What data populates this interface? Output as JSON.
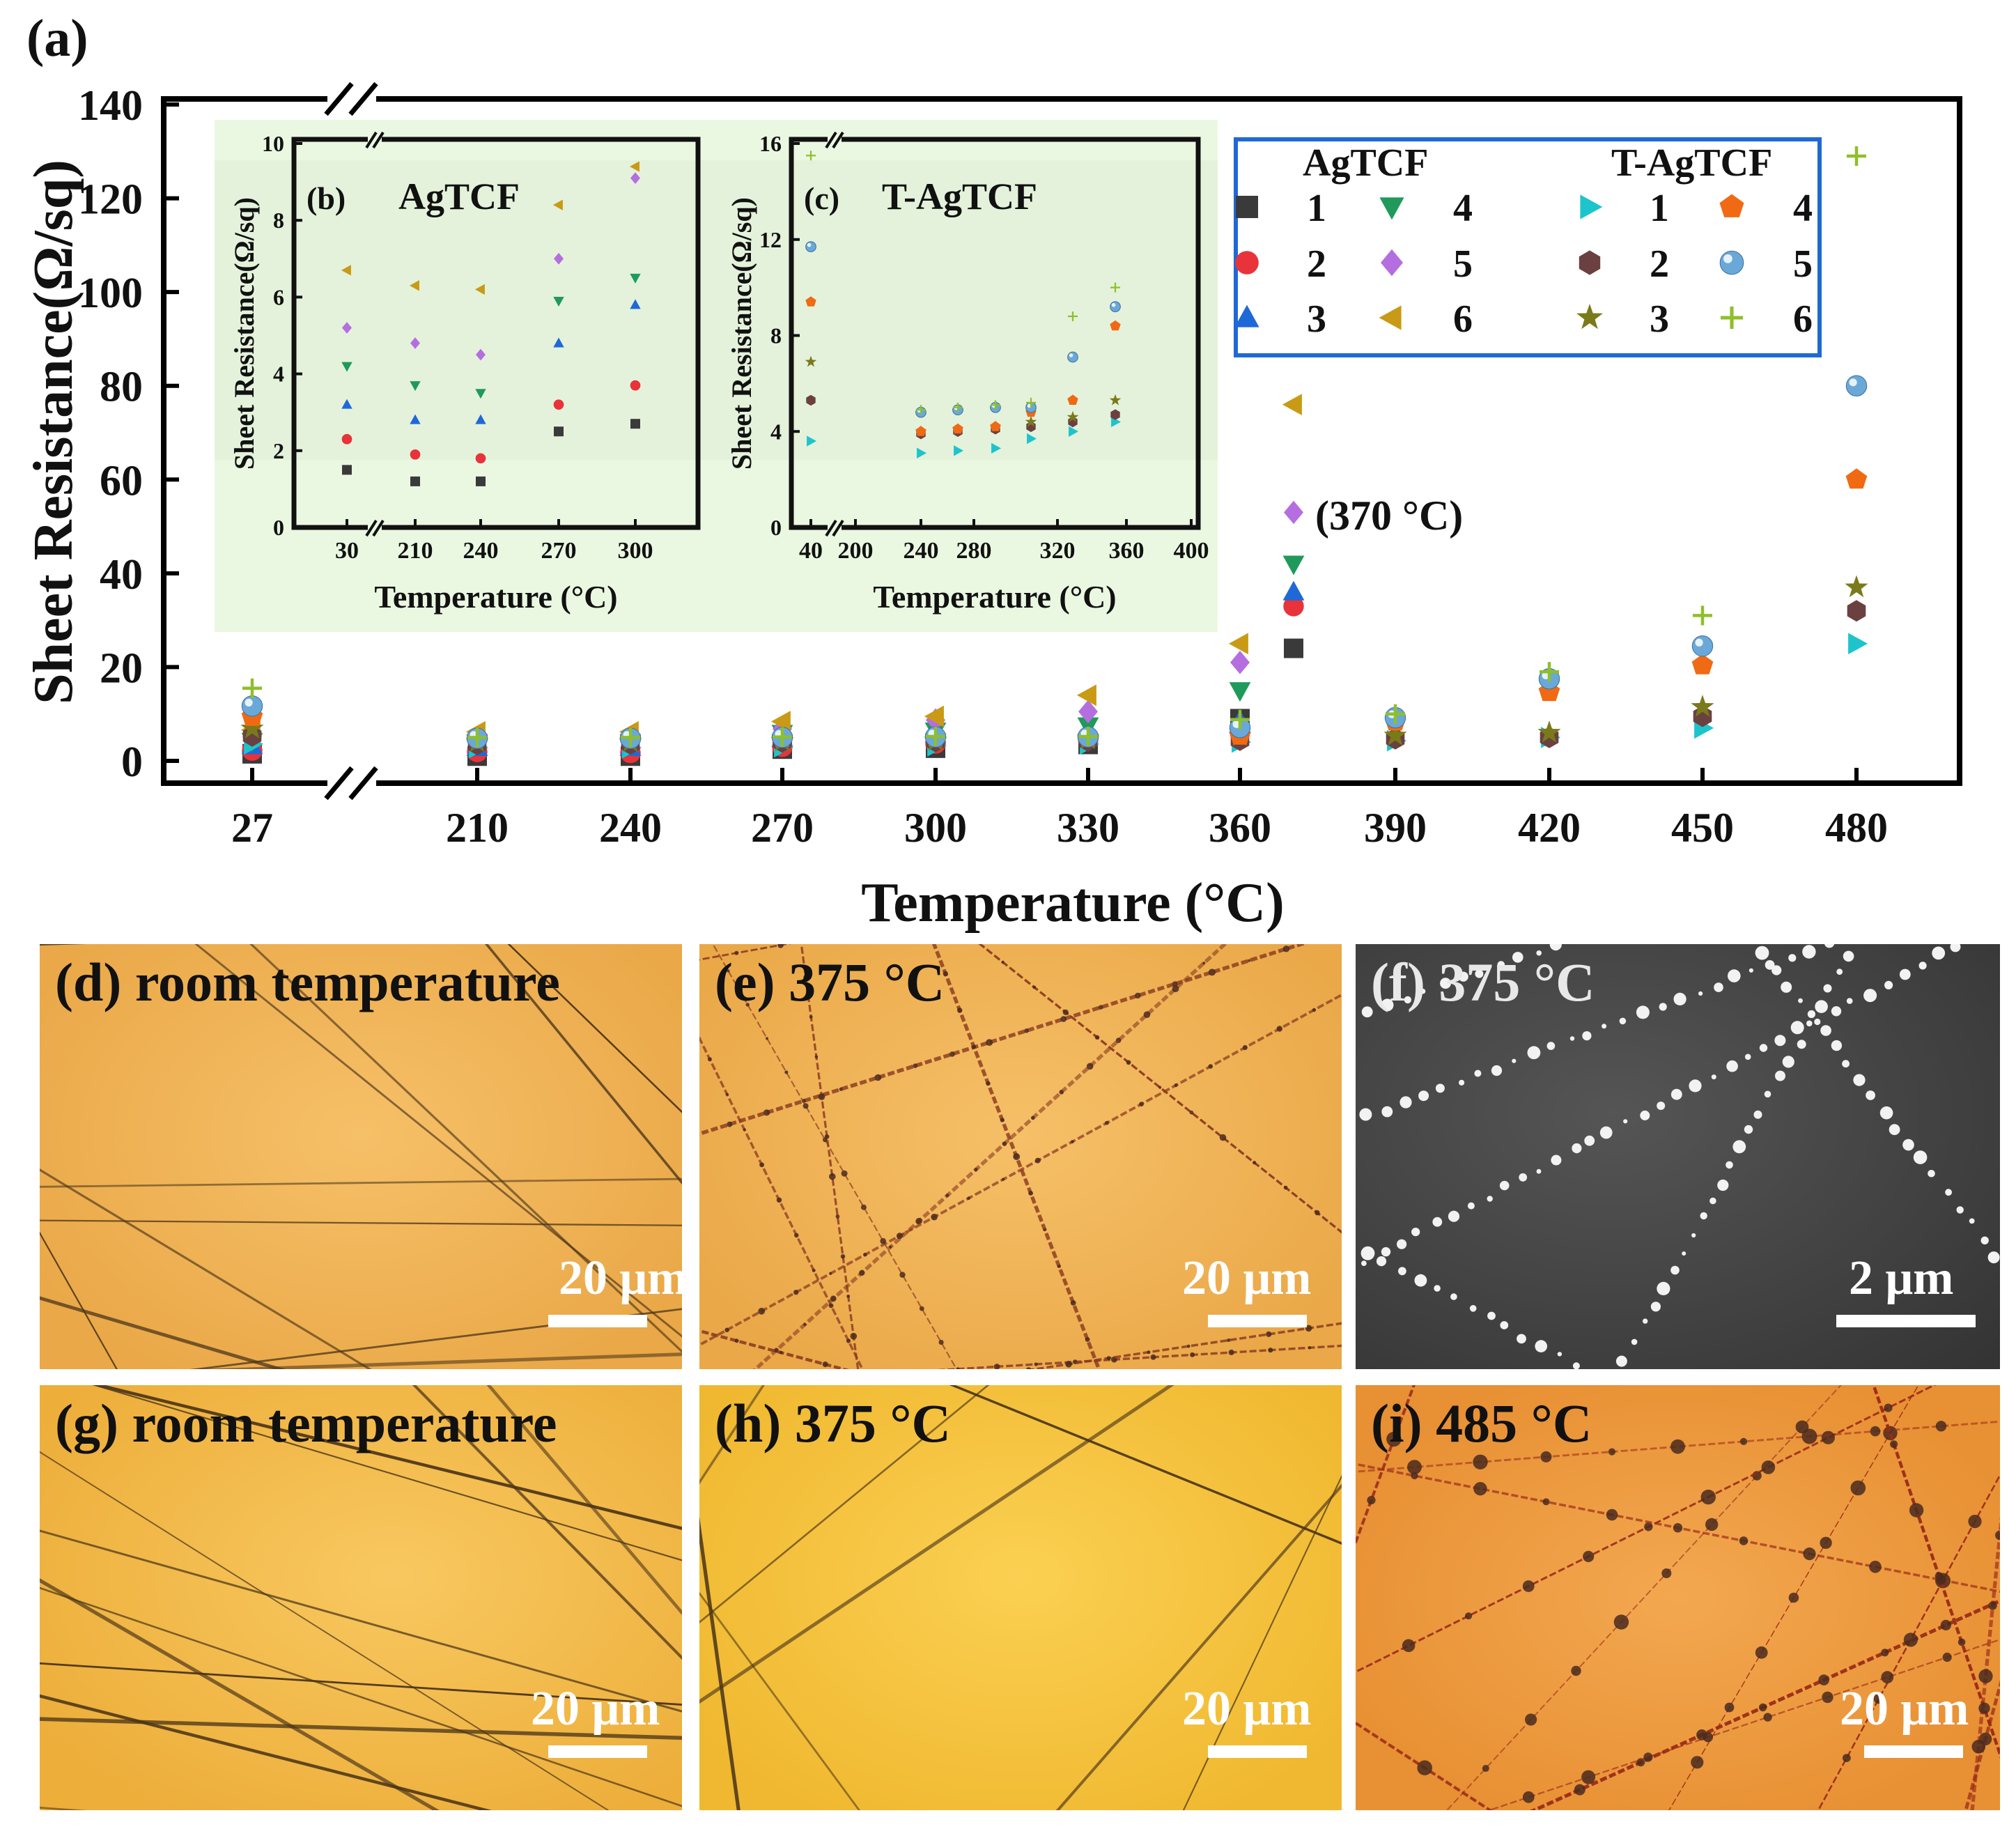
{
  "figure_label_a": "(a)",
  "colors": {
    "black": "#3a3a3a",
    "red": "#e8333a",
    "blue": "#1f68d8",
    "green": "#1f9a5a",
    "purple": "#b56ee0",
    "gold": "#c99a15",
    "cyan": "#1ec4cc",
    "brown": "#6b4040",
    "sphere": "#6aa8d8",
    "orange": "#f06a14",
    "olive": "#7a7a1a",
    "lime": "#8fbf2a"
  },
  "chart_data": [
    {
      "id": "a",
      "type": "scatter",
      "ylabel": "Sheet Resistance(Ω/sq)",
      "xlabel": "Temperature (°C)",
      "ylim": [
        0,
        140
      ],
      "yticks": [
        0,
        20,
        40,
        60,
        80,
        100,
        120,
        140
      ],
      "xticks": [
        "27",
        "210",
        "240",
        "270",
        "300",
        "330",
        "360",
        "390",
        "420",
        "450",
        "480"
      ],
      "annotation": "(370 °C)",
      "legend": {
        "group1_title": "AgTCF",
        "group2_title": "T-AgTCF",
        "entries": [
          "1",
          "4",
          "2",
          "5",
          "3",
          "6"
        ]
      },
      "series": [
        {
          "group": "AgTCF",
          "name": "1",
          "marker": "square",
          "color": "#3a3a3a",
          "x": [
            "27",
            "210",
            "240",
            "270",
            "300",
            "330",
            "360",
            "370"
          ],
          "values": [
            1.5,
            1.0,
            1.0,
            2.5,
            2.7,
            3.5,
            9.0,
            24.0
          ]
        },
        {
          "group": "AgTCF",
          "name": "2",
          "marker": "circle",
          "color": "#e8333a",
          "x": [
            "27",
            "210",
            "240",
            "270",
            "300",
            "330",
            "360",
            "370"
          ],
          "values": [
            2.2,
            1.9,
            1.7,
            3.0,
            3.7,
            4.5,
            6.0,
            33.0
          ]
        },
        {
          "group": "AgTCF",
          "name": "3",
          "marker": "triangle-up",
          "color": "#1f68d8",
          "x": [
            "27",
            "210",
            "240",
            "270",
            "300",
            "330",
            "360",
            "370"
          ],
          "values": [
            3.2,
            2.8,
            2.8,
            4.8,
            5.7,
            6.5,
            8.5,
            36.0
          ]
        },
        {
          "group": "AgTCF",
          "name": "4",
          "marker": "triangle-down",
          "color": "#1f9a5a",
          "x": [
            "27",
            "210",
            "240",
            "270",
            "300",
            "330",
            "360",
            "370"
          ],
          "values": [
            4.2,
            3.7,
            3.5,
            5.9,
            6.4,
            7.5,
            15.0,
            42.0
          ]
        },
        {
          "group": "AgTCF",
          "name": "5",
          "marker": "diamond",
          "color": "#b56ee0",
          "x": [
            "27",
            "210",
            "240",
            "270",
            "300",
            "330",
            "360",
            "370"
          ],
          "values": [
            5.2,
            4.8,
            4.4,
            6.8,
            8.7,
            10.5,
            21.0,
            53.0
          ]
        },
        {
          "group": "AgTCF",
          "name": "6",
          "marker": "triangle-left",
          "color": "#c99a15",
          "x": [
            "27",
            "210",
            "240",
            "270",
            "300",
            "330",
            "360",
            "370"
          ],
          "values": [
            6.6,
            6.2,
            6.2,
            8.4,
            9.5,
            14.0,
            25.0,
            76.0
          ]
        },
        {
          "group": "T-AgTCF",
          "name": "1",
          "marker": "triangle-right",
          "color": "#1ec4cc",
          "x": [
            "27",
            "210",
            "240",
            "270",
            "300",
            "330",
            "360",
            "390",
            "420",
            "450",
            "480"
          ],
          "values": [
            3.6,
            2.8,
            2.8,
            3.0,
            3.2,
            3.6,
            4.0,
            4.3,
            5.0,
            7.0,
            25.0
          ]
        },
        {
          "group": "T-AgTCF",
          "name": "2",
          "marker": "hexagon",
          "color": "#6b4040",
          "x": [
            "27",
            "210",
            "240",
            "270",
            "300",
            "330",
            "360",
            "390",
            "420",
            "450",
            "480"
          ],
          "values": [
            5.3,
            3.5,
            3.6,
            4.0,
            4.1,
            4.2,
            4.4,
            4.7,
            5.0,
            9.5,
            32.0
          ]
        },
        {
          "group": "T-AgTCF",
          "name": "3",
          "marker": "star",
          "color": "#7a7a1a",
          "x": [
            "27",
            "210",
            "240",
            "270",
            "300",
            "330",
            "360",
            "390",
            "420",
            "450",
            "480"
          ],
          "values": [
            6.9,
            4.0,
            4.0,
            4.2,
            4.3,
            4.6,
            5.3,
            5.4,
            6.0,
            11.5,
            37.0
          ]
        },
        {
          "group": "T-AgTCF",
          "name": "4",
          "marker": "pentagon",
          "color": "#f06a14",
          "x": [
            "27",
            "210",
            "240",
            "270",
            "300",
            "330",
            "360",
            "390",
            "420",
            "450",
            "480"
          ],
          "values": [
            9.4,
            4.9,
            4.9,
            4.9,
            5.0,
            5.0,
            5.4,
            8.4,
            14.7,
            20.4,
            60.0
          ]
        },
        {
          "group": "T-AgTCF",
          "name": "5",
          "marker": "sphere",
          "color": "#6aa8d8",
          "x": [
            "27",
            "210",
            "240",
            "270",
            "300",
            "330",
            "360",
            "390",
            "420",
            "450",
            "480"
          ],
          "values": [
            11.7,
            4.8,
            4.8,
            5.0,
            5.1,
            5.1,
            7.1,
            9.2,
            17.5,
            24.5,
            80.0
          ]
        },
        {
          "group": "T-AgTCF",
          "name": "6",
          "marker": "plus",
          "color": "#8fbf2a",
          "x": [
            "27",
            "210",
            "240",
            "270",
            "300",
            "330",
            "360",
            "390",
            "420",
            "450",
            "480"
          ],
          "values": [
            15.5,
            5.0,
            5.0,
            5.1,
            5.2,
            5.2,
            8.8,
            10.0,
            19.0,
            31.0,
            129.0
          ]
        }
      ]
    },
    {
      "id": "b",
      "type": "scatter",
      "label": "(b)",
      "title": "AgTCF",
      "ylabel": "Sheet Resistance(Ω/sq)",
      "xlabel": "Temperature (°C)",
      "ylim": [
        0,
        10
      ],
      "yticks": [
        0,
        2,
        4,
        6,
        8,
        10
      ],
      "xticks": [
        "30",
        "210",
        "240",
        "270",
        "300"
      ],
      "series": [
        {
          "name": "1",
          "marker": "square",
          "color": "#3a3a3a",
          "values": [
            1.5,
            1.2,
            1.2,
            2.5,
            2.7
          ]
        },
        {
          "name": "2",
          "marker": "circle",
          "color": "#e8333a",
          "values": [
            2.3,
            1.9,
            1.8,
            3.2,
            3.7
          ]
        },
        {
          "name": "3",
          "marker": "triangle-up",
          "color": "#1f68d8",
          "values": [
            3.2,
            2.8,
            2.8,
            4.8,
            5.8
          ]
        },
        {
          "name": "4",
          "marker": "triangle-down",
          "color": "#1f9a5a",
          "values": [
            4.2,
            3.7,
            3.5,
            5.9,
            6.5
          ]
        },
        {
          "name": "5",
          "marker": "diamond",
          "color": "#b56ee0",
          "values": [
            5.2,
            4.8,
            4.5,
            7.0,
            9.1
          ]
        },
        {
          "name": "6",
          "marker": "triangle-left",
          "color": "#c99a15",
          "values": [
            6.7,
            6.3,
            6.2,
            8.4,
            9.4
          ]
        }
      ]
    },
    {
      "id": "c",
      "type": "scatter",
      "label": "(c)",
      "title": "T-AgTCF",
      "ylabel": "Sheet Resistance(Ω/sq)",
      "xlabel": "Temperature (°C)",
      "ylim": [
        0,
        16
      ],
      "yticks": [
        0,
        4,
        8,
        12,
        16
      ],
      "xticks": [
        "40",
        "200",
        "240",
        "280",
        "320",
        "360",
        "400"
      ],
      "x": [
        40,
        240,
        270,
        300,
        330,
        360,
        390
      ],
      "series": [
        {
          "name": "1",
          "marker": "triangle-right",
          "color": "#1ec4cc",
          "values": [
            3.6,
            3.1,
            3.2,
            3.3,
            3.7,
            4.0,
            4.4
          ]
        },
        {
          "name": "2",
          "marker": "hexagon",
          "color": "#6b4040",
          "values": [
            5.3,
            3.9,
            4.0,
            4.1,
            4.2,
            4.4,
            4.7
          ]
        },
        {
          "name": "3",
          "marker": "star",
          "color": "#7a7a1a",
          "values": [
            6.9,
            4.0,
            4.1,
            4.2,
            4.4,
            4.6,
            5.3
          ]
        },
        {
          "name": "4",
          "marker": "pentagon",
          "color": "#f06a14",
          "values": [
            9.4,
            4.0,
            4.1,
            4.2,
            4.8,
            5.3,
            8.4
          ]
        },
        {
          "name": "5",
          "marker": "sphere",
          "color": "#6aa8d8",
          "values": [
            11.7,
            4.8,
            4.9,
            5.0,
            5.0,
            7.1,
            9.2
          ]
        },
        {
          "name": "6",
          "marker": "plus",
          "color": "#8fbf2a",
          "values": [
            15.5,
            4.9,
            5.0,
            5.1,
            5.2,
            8.8,
            10.0
          ]
        }
      ]
    }
  ],
  "micrographs": [
    {
      "id": "d",
      "label": "(d)",
      "caption": "room temperature",
      "scale": "20 μm",
      "style": "optical-clean"
    },
    {
      "id": "e",
      "label": "(e)",
      "caption": "375 °C",
      "scale": "20 μm",
      "style": "optical-beaded"
    },
    {
      "id": "f",
      "label": "(f)",
      "caption": "375 °C",
      "scale": "2 μm",
      "style": "sem"
    },
    {
      "id": "g",
      "label": "(g)",
      "caption": "room temperature",
      "scale": "20 μm",
      "style": "optical-clean"
    },
    {
      "id": "h",
      "label": "(h)",
      "caption": "375 °C",
      "scale": "20 μm",
      "style": "optical-clean"
    },
    {
      "id": "i",
      "label": "(i)",
      "caption": "485 °C",
      "scale": "20 μm",
      "style": "optical-beaded-red"
    }
  ]
}
